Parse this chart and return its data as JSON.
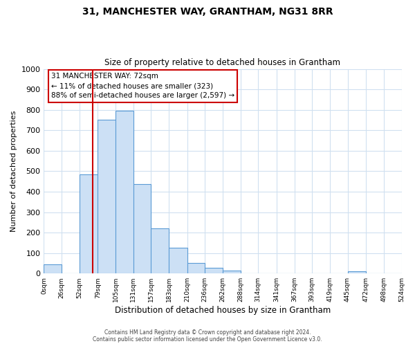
{
  "title": "31, MANCHESTER WAY, GRANTHAM, NG31 8RR",
  "subtitle": "Size of property relative to detached houses in Grantham",
  "xlabel": "Distribution of detached houses by size in Grantham",
  "ylabel": "Number of detached properties",
  "bar_edges": [
    0,
    26,
    52,
    79,
    105,
    131,
    157,
    183,
    210,
    236,
    262,
    288,
    314,
    341,
    367,
    393,
    419,
    445,
    472,
    498,
    524
  ],
  "bar_heights": [
    45,
    0,
    485,
    750,
    795,
    437,
    220,
    125,
    52,
    28,
    15,
    0,
    0,
    0,
    0,
    0,
    0,
    10,
    0,
    0
  ],
  "bar_color": "#cce0f5",
  "bar_edgecolor": "#5b9bd5",
  "property_line_x": 72,
  "property_line_color": "#cc0000",
  "ylim": [
    0,
    1000
  ],
  "yticks": [
    0,
    100,
    200,
    300,
    400,
    500,
    600,
    700,
    800,
    900,
    1000
  ],
  "xtick_labels": [
    "0sqm",
    "26sqm",
    "52sqm",
    "79sqm",
    "105sqm",
    "131sqm",
    "157sqm",
    "183sqm",
    "210sqm",
    "236sqm",
    "262sqm",
    "288sqm",
    "314sqm",
    "341sqm",
    "367sqm",
    "393sqm",
    "419sqm",
    "445sqm",
    "472sqm",
    "498sqm",
    "524sqm"
  ],
  "annotation_title": "31 MANCHESTER WAY: 72sqm",
  "annotation_line1": "← 11% of detached houses are smaller (323)",
  "annotation_line2": "88% of semi-detached houses are larger (2,597) →",
  "annotation_box_color": "#ffffff",
  "annotation_box_edgecolor": "#cc0000",
  "footer_line1": "Contains HM Land Registry data © Crown copyright and database right 2024.",
  "footer_line2": "Contains public sector information licensed under the Open Government Licence v3.0.",
  "background_color": "#ffffff",
  "grid_color": "#d0e0f0"
}
